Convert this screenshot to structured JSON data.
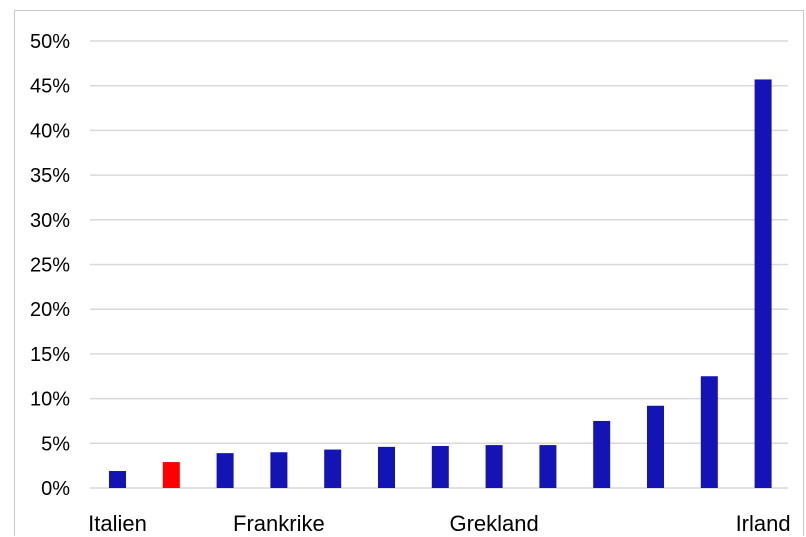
{
  "chart_data": {
    "type": "bar",
    "title": "",
    "xlabel": "",
    "ylabel": "",
    "ylim": [
      0,
      0.5
    ],
    "y_ticks": [
      "0%",
      "5%",
      "10%",
      "15%",
      "20%",
      "25%",
      "30%",
      "35%",
      "40%",
      "45%",
      "50%"
    ],
    "categories": [
      "Italien",
      "",
      "",
      "Frankrike",
      "",
      "",
      "",
      "Grekland",
      "",
      "",
      "",
      "",
      "Irland"
    ],
    "x_tick_labels": [
      "Italien",
      "Frankrike",
      "Grekland",
      "Irland"
    ],
    "values": [
      0.019,
      0.029,
      0.039,
      0.04,
      0.043,
      0.046,
      0.047,
      0.048,
      0.048,
      0.075,
      0.092,
      0.125,
      0.457
    ],
    "highlight_index": 1,
    "grid": true,
    "legend": "none"
  },
  "colors": {
    "bar": "#1414b4",
    "highlight": "#ff0000",
    "grid": "#d9d9d9",
    "axis_text": "#000000"
  }
}
